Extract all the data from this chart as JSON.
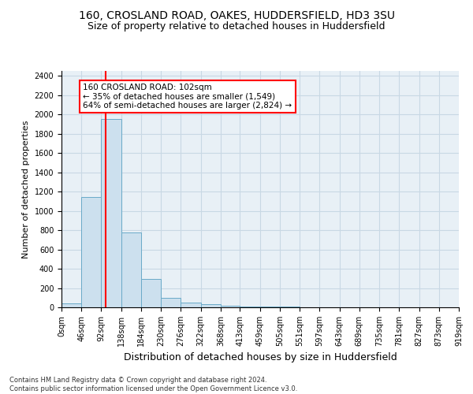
{
  "title1": "160, CROSLAND ROAD, OAKES, HUDDERSFIELD, HD3 3SU",
  "title2": "Size of property relative to detached houses in Huddersfield",
  "xlabel": "Distribution of detached houses by size in Huddersfield",
  "ylabel": "Number of detached properties",
  "bin_edges": [
    0,
    46,
    92,
    138,
    184,
    230,
    276,
    322,
    368,
    413,
    459,
    505,
    551,
    597,
    643,
    689,
    735,
    781,
    827,
    873,
    919
  ],
  "bar_heights": [
    40,
    1140,
    1950,
    775,
    295,
    100,
    50,
    30,
    20,
    10,
    8,
    5,
    4,
    3,
    3,
    2,
    2,
    2,
    1,
    1
  ],
  "bar_color": "#cce0ee",
  "bar_edge_color": "#6aaac8",
  "vline_x": 102,
  "vline_color": "red",
  "annotation_text": "160 CROSLAND ROAD: 102sqm\n← 35% of detached houses are smaller (1,549)\n64% of semi-detached houses are larger (2,824) →",
  "annotation_box_color": "white",
  "annotation_box_edge_color": "red",
  "ylim": [
    0,
    2450
  ],
  "yticks": [
    0,
    200,
    400,
    600,
    800,
    1000,
    1200,
    1400,
    1600,
    1800,
    2000,
    2200,
    2400
  ],
  "grid_color": "#c8d8e4",
  "bg_color": "#e8f0f6",
  "footnote": "Contains HM Land Registry data © Crown copyright and database right 2024.\nContains public sector information licensed under the Open Government Licence v3.0.",
  "title1_fontsize": 10,
  "title2_fontsize": 9,
  "xlabel_fontsize": 9,
  "ylabel_fontsize": 8,
  "tick_fontsize": 7,
  "annot_fontsize": 7.5,
  "footnote_fontsize": 6
}
